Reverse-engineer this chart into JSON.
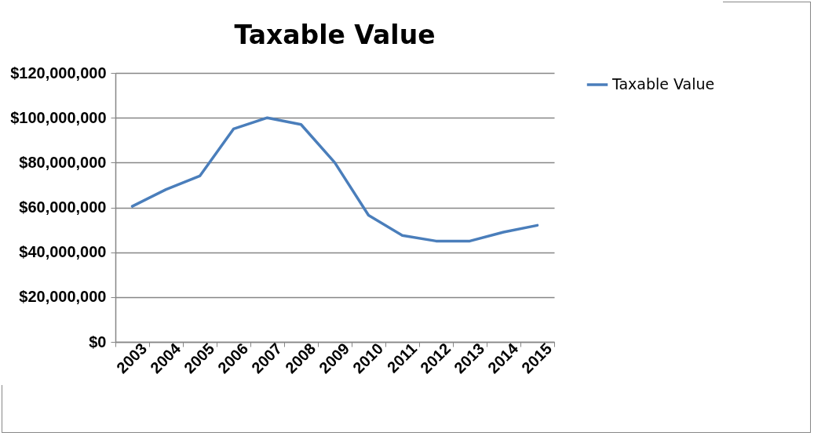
{
  "chart_data": {
    "type": "line",
    "title": "Taxable Value",
    "categories": [
      "2003",
      "2004",
      "2005",
      "2006",
      "2007",
      "2008",
      "2009",
      "2010",
      "2011",
      "2012",
      "2013",
      "2014",
      "2015"
    ],
    "series": [
      {
        "name": "Taxable Value",
        "color": "#4a7ebb",
        "values": [
          60500000,
          68000000,
          74000000,
          95000000,
          100000000,
          97000000,
          80000000,
          56500000,
          47500000,
          45000000,
          45000000,
          49000000,
          52000000
        ]
      }
    ],
    "ylim": [
      0,
      120000000
    ],
    "yticks": [
      {
        "value": 0,
        "label": "$0"
      },
      {
        "value": 20000000,
        "label": "$20,000,000"
      },
      {
        "value": 40000000,
        "label": "$40,000,000"
      },
      {
        "value": 60000000,
        "label": "$60,000,000"
      },
      {
        "value": 80000000,
        "label": "$80,000,000"
      },
      {
        "value": 100000000,
        "label": "$100,000,000"
      },
      {
        "value": 120000000,
        "label": "$120,000,000"
      }
    ],
    "grid": "y",
    "legend": "right",
    "marker": "none",
    "line_style": "solid"
  }
}
